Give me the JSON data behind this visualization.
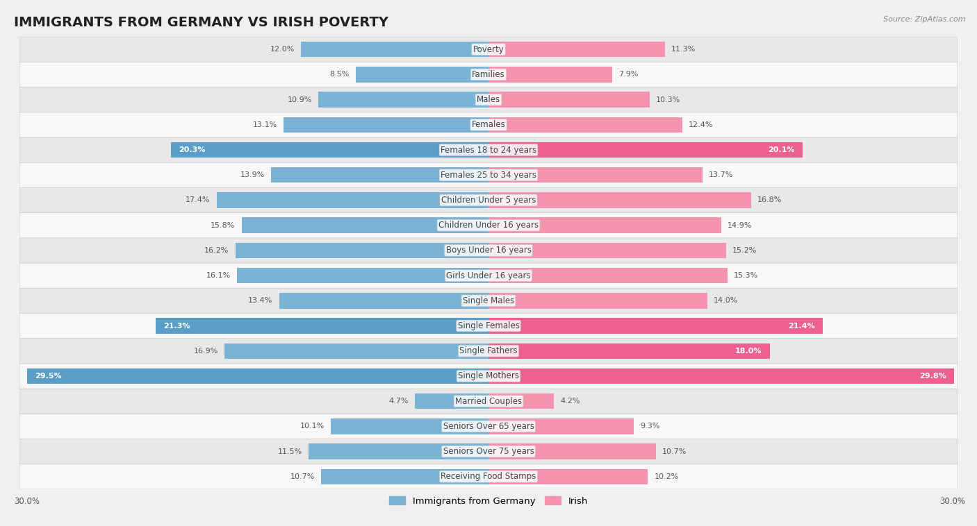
{
  "title": "IMMIGRANTS FROM GERMANY VS IRISH POVERTY",
  "source": "Source: ZipAtlas.com",
  "categories": [
    "Poverty",
    "Families",
    "Males",
    "Females",
    "Females 18 to 24 years",
    "Females 25 to 34 years",
    "Children Under 5 years",
    "Children Under 16 years",
    "Boys Under 16 years",
    "Girls Under 16 years",
    "Single Males",
    "Single Females",
    "Single Fathers",
    "Single Mothers",
    "Married Couples",
    "Seniors Over 65 years",
    "Seniors Over 75 years",
    "Receiving Food Stamps"
  ],
  "germany_values": [
    12.0,
    8.5,
    10.9,
    13.1,
    20.3,
    13.9,
    17.4,
    15.8,
    16.2,
    16.1,
    13.4,
    21.3,
    16.9,
    29.5,
    4.7,
    10.1,
    11.5,
    10.7
  ],
  "irish_values": [
    11.3,
    7.9,
    10.3,
    12.4,
    20.1,
    13.7,
    16.8,
    14.9,
    15.2,
    15.3,
    14.0,
    21.4,
    18.0,
    29.8,
    4.2,
    9.3,
    10.7,
    10.2
  ],
  "germany_color": "#7ab3d4",
  "irish_color": "#f393b0",
  "germany_color_highlight": "#5a9ec8",
  "irish_color_highlight": "#ee6090",
  "germany_label": "Immigrants from Germany",
  "irish_label": "Irish",
  "background_color": "#f0f0f0",
  "row_color_odd": "#f8f8f8",
  "row_color_even": "#e8e8e8",
  "max_value": 30.0,
  "title_fontsize": 14,
  "label_fontsize": 8.5,
  "value_fontsize": 8.0,
  "highlight_threshold": 17.5
}
